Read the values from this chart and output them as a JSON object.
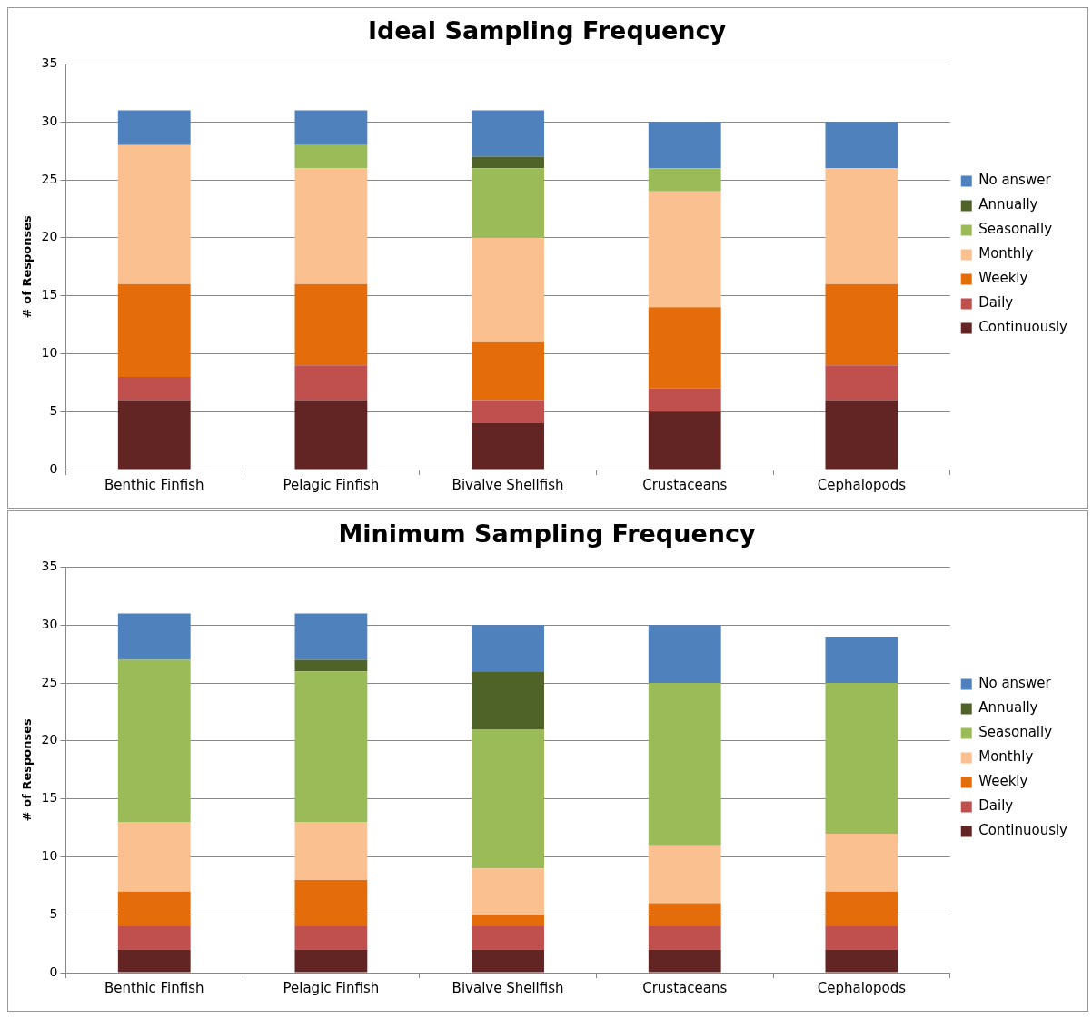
{
  "chart_data": [
    {
      "type": "bar",
      "title": "Ideal Sampling Frequency",
      "ylabel": "# of Responses",
      "categories": [
        "Benthic Finfish",
        "Pelagic Finfish",
        "Bivalve Shellfish",
        "Crustaceans",
        "Cephalopods"
      ],
      "stacked": true,
      "ylim": [
        0,
        35
      ],
      "yticks": [
        0,
        5,
        10,
        15,
        20,
        25,
        30,
        35
      ],
      "grid": "y",
      "legend": "right",
      "series": [
        {
          "name": "Continuously",
          "color": "#632523",
          "values": [
            6,
            6,
            4,
            5,
            6
          ]
        },
        {
          "name": "Daily",
          "color": "#c0504d",
          "values": [
            2,
            3,
            2,
            2,
            3
          ]
        },
        {
          "name": "Weekly",
          "color": "#e46c0a",
          "values": [
            8,
            7,
            5,
            7,
            7
          ]
        },
        {
          "name": "Monthly",
          "color": "#fac090",
          "values": [
            12,
            10,
            9,
            10,
            10
          ]
        },
        {
          "name": "Seasonally",
          "color": "#9bbb59",
          "values": [
            0,
            2,
            6,
            2,
            0
          ]
        },
        {
          "name": "Annually",
          "color": "#4f6228",
          "values": [
            0,
            0,
            1,
            0,
            0
          ]
        },
        {
          "name": "No answer",
          "color": "#4f81bd",
          "values": [
            3,
            3,
            4,
            4,
            4
          ]
        }
      ]
    },
    {
      "type": "bar",
      "title": "Minimum Sampling Frequency",
      "ylabel": "# of Responses",
      "categories": [
        "Benthic Finfish",
        "Pelagic Finfish",
        "Bivalve Shellfish",
        "Crustaceans",
        "Cephalopods"
      ],
      "stacked": true,
      "ylim": [
        0,
        35
      ],
      "yticks": [
        0,
        5,
        10,
        15,
        20,
        25,
        30,
        35
      ],
      "grid": "y",
      "legend": "right",
      "series": [
        {
          "name": "Continuously",
          "color": "#632523",
          "values": [
            2,
            2,
            2,
            2,
            2
          ]
        },
        {
          "name": "Daily",
          "color": "#c0504d",
          "values": [
            2,
            2,
            2,
            2,
            2
          ]
        },
        {
          "name": "Weekly",
          "color": "#e46c0a",
          "values": [
            3,
            4,
            1,
            2,
            3
          ]
        },
        {
          "name": "Monthly",
          "color": "#fac090",
          "values": [
            6,
            5,
            4,
            5,
            5
          ]
        },
        {
          "name": "Seasonally",
          "color": "#9bbb59",
          "values": [
            14,
            13,
            12,
            14,
            13
          ]
        },
        {
          "name": "Annually",
          "color": "#4f6228",
          "values": [
            0,
            1,
            5,
            0,
            0
          ]
        },
        {
          "name": "No answer",
          "color": "#4f81bd",
          "values": [
            4,
            4,
            4,
            5,
            4
          ]
        }
      ]
    }
  ]
}
